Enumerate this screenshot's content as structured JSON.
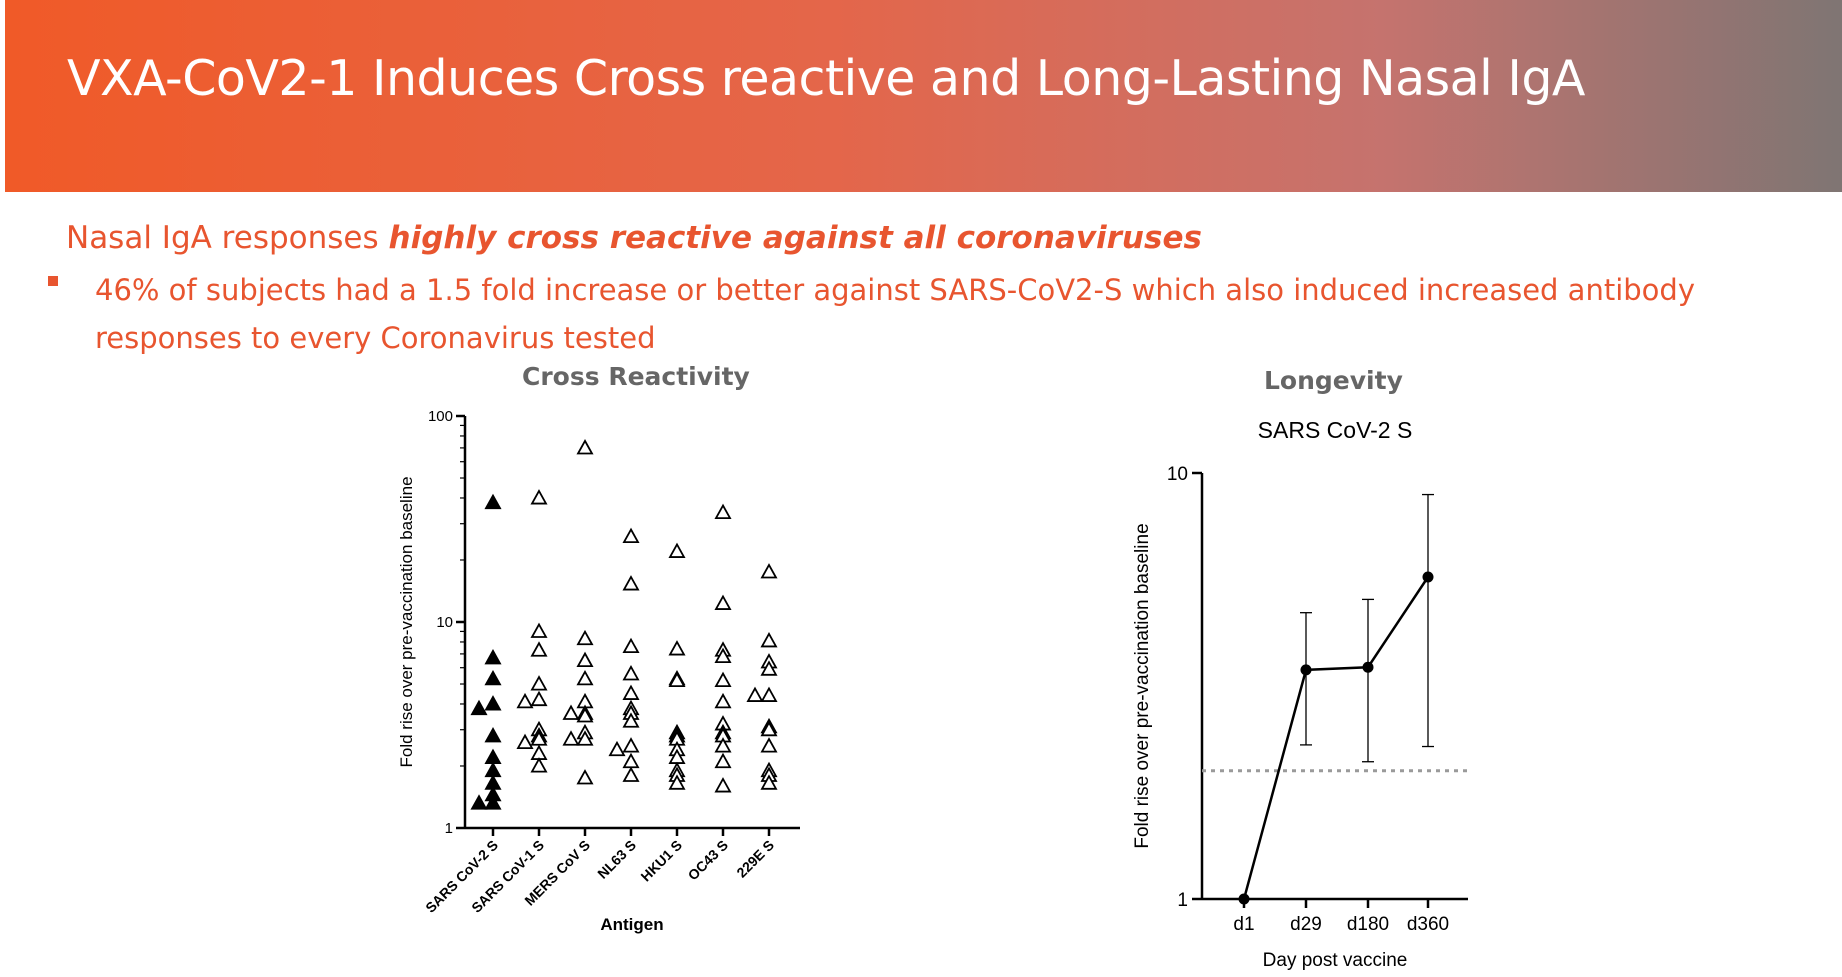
{
  "slide": {
    "title": "VXA-CoV2-1 Induces Cross reactive and Long-Lasting Nasal IgA",
    "subtitle_plain": "Nasal IgA responses ",
    "subtitle_bold": "highly cross reactive against all coronaviruses",
    "bullet": "46% of subjects had a 1.5 fold increase or better against SARS-CoV2-S which also induced increased antibody responses to every Coronavirus tested"
  },
  "charts": {
    "left_heading": "Cross Reactivity",
    "right_heading": "Longevity"
  },
  "colors": {
    "accent": "#e8552f",
    "banner_start": "#f05a28",
    "banner_end": "#7f7573"
  },
  "chart_data": [
    {
      "type": "scatter",
      "xlabel": "Antigen",
      "ylabel": "Fold rise over pre-vaccination baseline",
      "yscale": "log",
      "ylim": [
        1,
        100
      ],
      "yticks": [
        "1",
        "10",
        "100"
      ],
      "categories": [
        "SARS CoV-2 S",
        "SARS CoV-1 S",
        "MERS CoV S",
        "NL63 S",
        "HKU1 S",
        "OC43 S",
        "229E S"
      ],
      "filled_categories": [
        "SARS CoV-2 S"
      ],
      "points": [
        {
          "cat": 0,
          "y": 38
        },
        {
          "cat": 0,
          "y": 6.7
        },
        {
          "cat": 0,
          "y": 5.3
        },
        {
          "cat": 0,
          "y": 4.0
        },
        {
          "cat": 0,
          "y": 3.8
        },
        {
          "cat": 0,
          "y": 2.8
        },
        {
          "cat": 0,
          "y": 2.2
        },
        {
          "cat": 0,
          "y": 1.9
        },
        {
          "cat": 0,
          "y": 1.65
        },
        {
          "cat": 0,
          "y": 1.45
        },
        {
          "cat": 0,
          "y": 1.32
        },
        {
          "cat": 0,
          "y": 1.32
        },
        {
          "cat": 1,
          "y": 40
        },
        {
          "cat": 1,
          "y": 9.0
        },
        {
          "cat": 1,
          "y": 7.3
        },
        {
          "cat": 1,
          "y": 5.0
        },
        {
          "cat": 1,
          "y": 4.2
        },
        {
          "cat": 1,
          "y": 4.1
        },
        {
          "cat": 1,
          "y": 3.0
        },
        {
          "cat": 1,
          "y": 2.8
        },
        {
          "cat": 1,
          "y": 2.7
        },
        {
          "cat": 1,
          "y": 2.6
        },
        {
          "cat": 1,
          "y": 2.3
        },
        {
          "cat": 1,
          "y": 2.0
        },
        {
          "cat": 2,
          "y": 70
        },
        {
          "cat": 2,
          "y": 8.3
        },
        {
          "cat": 2,
          "y": 6.5
        },
        {
          "cat": 2,
          "y": 5.3
        },
        {
          "cat": 2,
          "y": 4.1
        },
        {
          "cat": 2,
          "y": 3.6
        },
        {
          "cat": 2,
          "y": 3.6
        },
        {
          "cat": 2,
          "y": 3.5
        },
        {
          "cat": 2,
          "y": 2.9
        },
        {
          "cat": 2,
          "y": 2.7
        },
        {
          "cat": 2,
          "y": 2.7
        },
        {
          "cat": 2,
          "y": 1.75
        },
        {
          "cat": 3,
          "y": 26
        },
        {
          "cat": 3,
          "y": 15.3
        },
        {
          "cat": 3,
          "y": 7.6
        },
        {
          "cat": 3,
          "y": 5.6
        },
        {
          "cat": 3,
          "y": 4.5
        },
        {
          "cat": 3,
          "y": 3.8
        },
        {
          "cat": 3,
          "y": 3.6
        },
        {
          "cat": 3,
          "y": 3.3
        },
        {
          "cat": 3,
          "y": 2.5
        },
        {
          "cat": 3,
          "y": 2.4
        },
        {
          "cat": 3,
          "y": 2.1
        },
        {
          "cat": 3,
          "y": 1.8
        },
        {
          "cat": 4,
          "y": 22
        },
        {
          "cat": 4,
          "y": 7.4
        },
        {
          "cat": 4,
          "y": 5.3
        },
        {
          "cat": 4,
          "y": 5.2
        },
        {
          "cat": 4,
          "y": 2.9
        },
        {
          "cat": 4,
          "y": 2.8
        },
        {
          "cat": 4,
          "y": 2.7
        },
        {
          "cat": 4,
          "y": 2.4
        },
        {
          "cat": 4,
          "y": 2.2
        },
        {
          "cat": 4,
          "y": 1.9
        },
        {
          "cat": 4,
          "y": 1.8
        },
        {
          "cat": 4,
          "y": 1.65
        },
        {
          "cat": 5,
          "y": 34
        },
        {
          "cat": 5,
          "y": 12.3
        },
        {
          "cat": 5,
          "y": 7.3
        },
        {
          "cat": 5,
          "y": 6.8
        },
        {
          "cat": 5,
          "y": 5.2
        },
        {
          "cat": 5,
          "y": 4.1
        },
        {
          "cat": 5,
          "y": 3.2
        },
        {
          "cat": 5,
          "y": 2.9
        },
        {
          "cat": 5,
          "y": 2.8
        },
        {
          "cat": 5,
          "y": 2.5
        },
        {
          "cat": 5,
          "y": 2.1
        },
        {
          "cat": 5,
          "y": 1.6
        },
        {
          "cat": 6,
          "y": 17.5
        },
        {
          "cat": 6,
          "y": 8.1
        },
        {
          "cat": 6,
          "y": 6.4
        },
        {
          "cat": 6,
          "y": 5.9
        },
        {
          "cat": 6,
          "y": 4.4
        },
        {
          "cat": 6,
          "y": 4.4
        },
        {
          "cat": 6,
          "y": 3.1
        },
        {
          "cat": 6,
          "y": 3.0
        },
        {
          "cat": 6,
          "y": 2.5
        },
        {
          "cat": 6,
          "y": 1.9
        },
        {
          "cat": 6,
          "y": 1.8
        },
        {
          "cat": 6,
          "y": 1.65
        }
      ]
    },
    {
      "type": "line",
      "title": "SARS CoV-2 S",
      "xlabel": "Day post vaccine",
      "ylabel": "Fold rise over pre-vaccination baseline",
      "yscale": "log",
      "ylim": [
        1,
        10
      ],
      "yticks": [
        "1",
        "10"
      ],
      "categories": [
        "d1",
        "d29",
        "d180",
        "d360"
      ],
      "series": [
        {
          "values": [
            1.0,
            3.45,
            3.5,
            5.7
          ],
          "error_low": [
            1.0,
            2.3,
            2.1,
            2.28
          ],
          "error_high": [
            1.0,
            4.7,
            5.05,
            8.9
          ]
        }
      ],
      "reference_line": 2.0
    }
  ]
}
